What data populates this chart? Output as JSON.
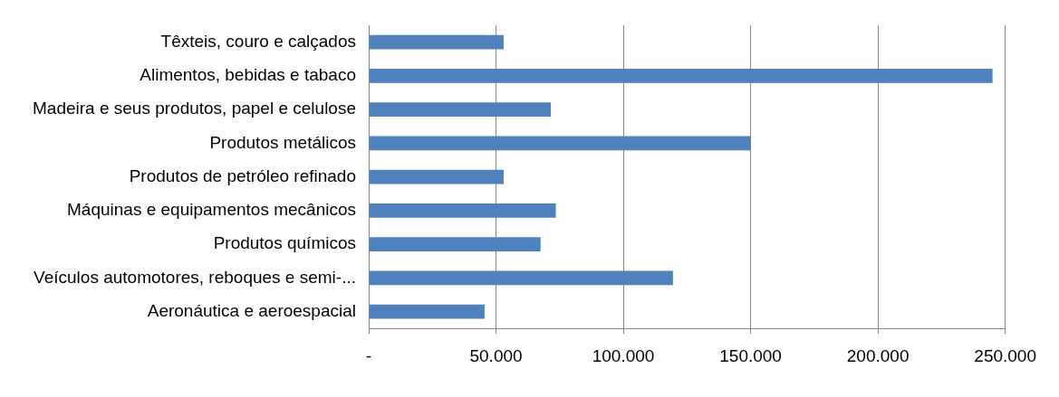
{
  "chart_data": {
    "type": "bar",
    "orientation": "horizontal",
    "categories": [
      "Têxteis, couro e calçados",
      "Alimentos, bebidas e tabaco",
      "Madeira e seus produtos, papel e celulose",
      "Produtos metálicos",
      "Produtos de petróleo refinado",
      "Máquinas e equipamentos mecânicos",
      "Produtos químicos",
      "Veículos automotores, reboques e semi-...",
      "Aeronáutica e aeroespacial"
    ],
    "values": [
      53000,
      245000,
      71500,
      150000,
      53000,
      73500,
      67500,
      119500,
      45500
    ],
    "color": "#4f81bd",
    "xlim": [
      0,
      250000
    ],
    "xticks": [
      {
        "value": 0,
        "label": "-"
      },
      {
        "value": 50000,
        "label": "50.000"
      },
      {
        "value": 100000,
        "label": "100.000"
      },
      {
        "value": 150000,
        "label": "150.000"
      },
      {
        "value": 200000,
        "label": "200.000"
      },
      {
        "value": 250000,
        "label": "250.000"
      }
    ],
    "grid": "x",
    "legend": false
  }
}
